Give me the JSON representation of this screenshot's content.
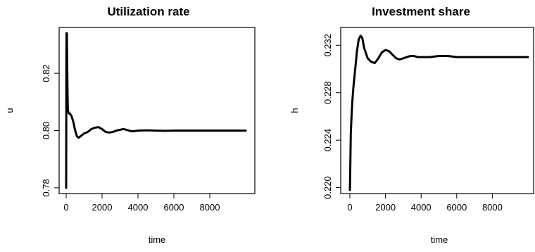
{
  "chart_data": [
    {
      "type": "line",
      "title": "Utilization rate",
      "xlabel": "time",
      "ylabel": "u",
      "xlim": [
        0,
        10000
      ],
      "ylim": [
        0.778,
        0.836
      ],
      "xticks": [
        0,
        2000,
        4000,
        6000,
        8000
      ],
      "xtick_labels": [
        "0",
        "2000",
        "4000",
        "6000",
        "8000"
      ],
      "yticks": [
        0.78,
        0.8,
        0.82
      ],
      "ytick_labels": [
        "0.78",
        "0.80",
        "0.82"
      ],
      "grid": false,
      "series": [
        {
          "x": [
            0,
            1,
            10,
            20,
            40,
            60,
            80,
            100,
            150,
            200,
            300,
            400,
            500,
            600,
            700,
            800,
            900,
            1000,
            1200,
            1400,
            1600,
            1800,
            2000,
            2200,
            2400,
            2600,
            2800,
            3000,
            3200,
            3400,
            3600,
            3800,
            4000,
            4500,
            5000,
            5500,
            6000,
            7000,
            8000,
            9000,
            10000
          ],
          "y": [
            0.78,
            0.78,
            0.826,
            0.834,
            0.834,
            0.822,
            0.812,
            0.807,
            0.806,
            0.806,
            0.805,
            0.803,
            0.8,
            0.798,
            0.7975,
            0.798,
            0.7985,
            0.799,
            0.7995,
            0.8005,
            0.801,
            0.8012,
            0.8005,
            0.7995,
            0.7993,
            0.7995,
            0.8,
            0.8003,
            0.8005,
            0.8002,
            0.7998,
            0.7998,
            0.8,
            0.8001,
            0.8,
            0.7999,
            0.8,
            0.8,
            0.8,
            0.8,
            0.8
          ]
        }
      ]
    },
    {
      "type": "line",
      "title": "Investment share",
      "xlabel": "time",
      "ylabel": "h",
      "xlim": [
        0,
        10000
      ],
      "ylim": [
        0.2195,
        0.2335
      ],
      "xticks": [
        0,
        2000,
        4000,
        6000,
        8000
      ],
      "xtick_labels": [
        "0",
        "2000",
        "4000",
        "6000",
        "8000"
      ],
      "yticks": [
        0.22,
        0.224,
        0.228,
        0.232
      ],
      "ytick_labels": [
        "0.220",
        "0.224",
        "0.228",
        "0.232"
      ],
      "grid": false,
      "series": [
        {
          "x": [
            0,
            10,
            50,
            100,
            150,
            200,
            300,
            400,
            500,
            600,
            700,
            800,
            1000,
            1200,
            1400,
            1600,
            1800,
            2000,
            2200,
            2400,
            2600,
            2800,
            3000,
            3200,
            3400,
            3600,
            3800,
            4000,
            4500,
            5000,
            5500,
            6000,
            7000,
            8000,
            9000,
            10000
          ],
          "y": [
            0.2198,
            0.2205,
            0.2245,
            0.2262,
            0.2275,
            0.2285,
            0.23,
            0.2315,
            0.2325,
            0.2328,
            0.2326,
            0.2318,
            0.2309,
            0.2306,
            0.2305,
            0.2309,
            0.2314,
            0.2316,
            0.2315,
            0.2312,
            0.2309,
            0.2308,
            0.2309,
            0.231,
            0.2311,
            0.2311,
            0.231,
            0.231,
            0.231,
            0.2311,
            0.2311,
            0.231,
            0.231,
            0.231,
            0.231,
            0.231
          ]
        }
      ]
    }
  ]
}
